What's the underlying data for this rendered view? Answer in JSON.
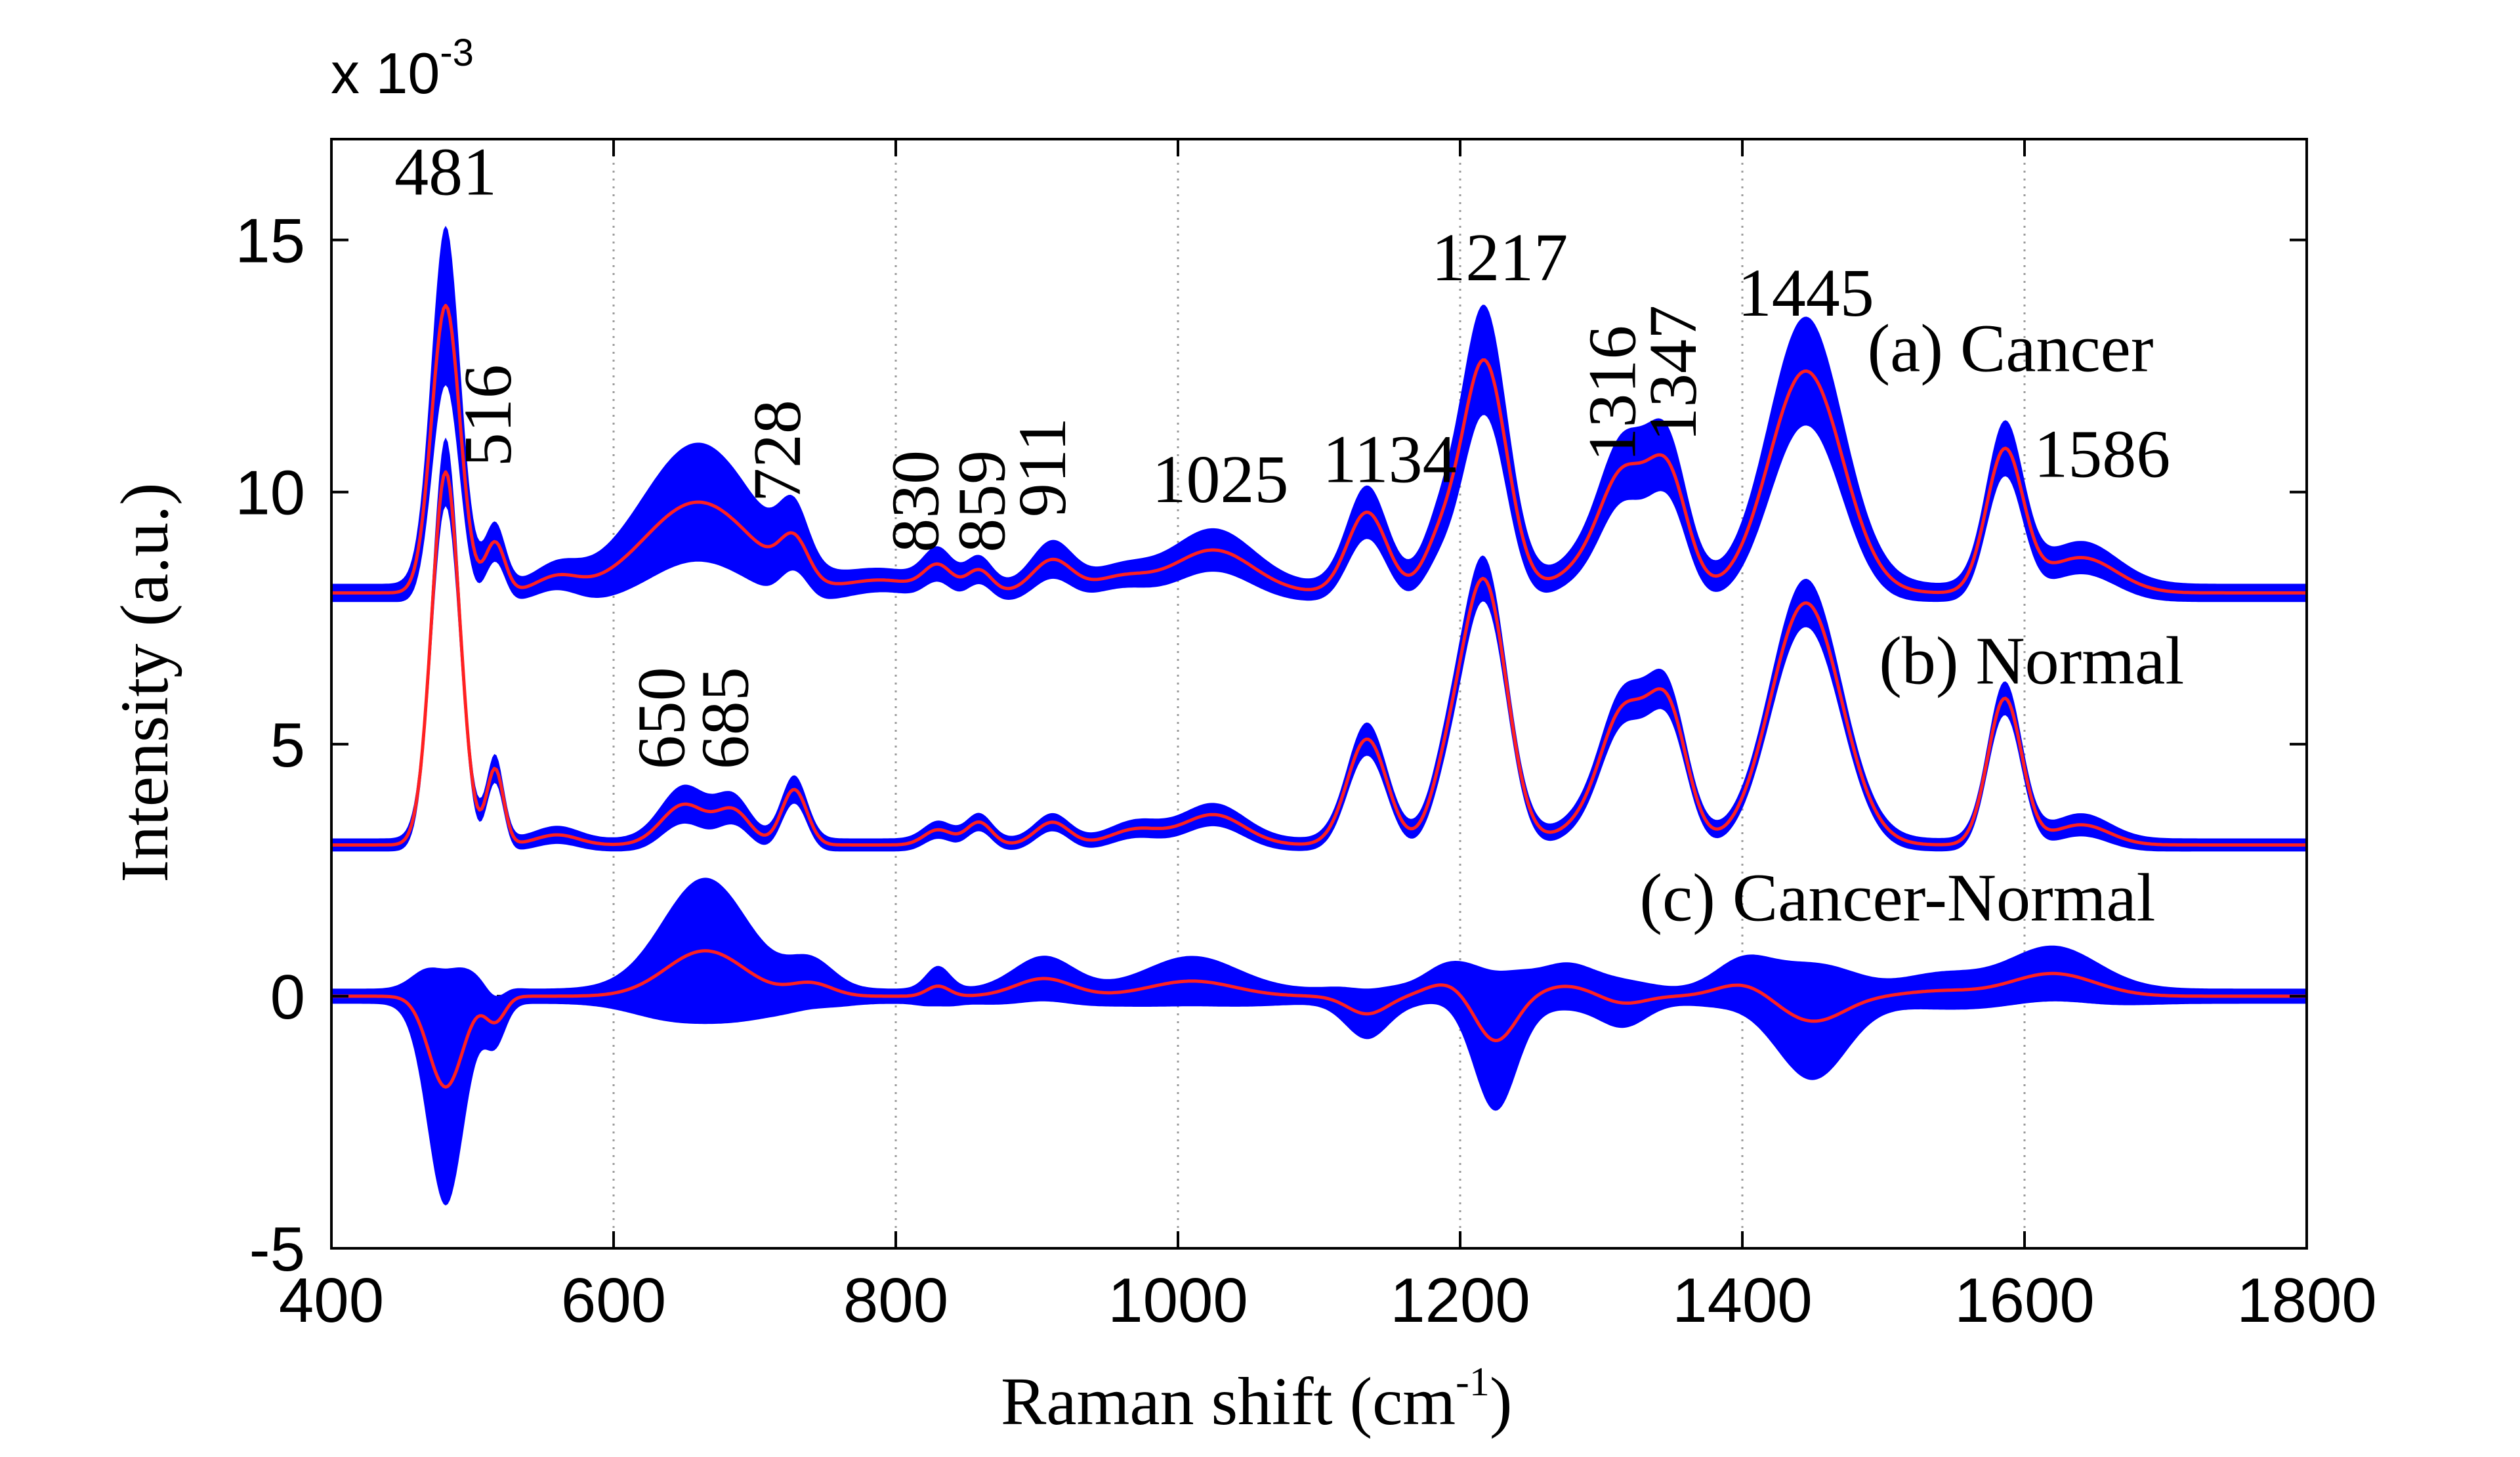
{
  "chart_data": {
    "type": "area",
    "multiplier": {
      "base": "x 10",
      "exponent": "-3"
    },
    "xlabel": {
      "text": "Raman shift (cm",
      "sup": "-1",
      "close": ")"
    },
    "ylabel": "Intensity (a.u.)",
    "xlim": [
      400,
      1800
    ],
    "ylim": [
      -5,
      17
    ],
    "xticks": [
      400,
      600,
      800,
      1000,
      1200,
      1400,
      1600,
      1800
    ],
    "yticks": [
      -5,
      0,
      5,
      10,
      15
    ],
    "xtick_labels": [
      "400",
      "600",
      "800",
      "1000",
      "1200",
      "1400",
      "1600",
      "1800"
    ],
    "ytick_labels": [
      "-5",
      "0",
      "5",
      "10",
      "15"
    ],
    "grid": "vertical dotted",
    "zero_line": {
      "y": 0,
      "style": "dashed"
    },
    "colors": {
      "band": "#0000FF",
      "mean": "#FF2020",
      "grid": "#9a9a9a",
      "axis": "#000000"
    },
    "series": [
      {
        "name": "(a) Cancer",
        "baseline": 8.0,
        "band_halfwidth": 0.18,
        "peaks": [
          {
            "x": 481,
            "h": 5.7,
            "w": 10,
            "bw": 1.4
          },
          {
            "x": 516,
            "h": 1.0,
            "w": 7,
            "bw": 0.2
          },
          {
            "x": 560,
            "h": 0.3,
            "w": 15,
            "bw": 0.05
          },
          {
            "x": 660,
            "h": 1.8,
            "w": 38,
            "bw": 1.0
          },
          {
            "x": 728,
            "h": 0.8,
            "w": 10,
            "bw": 0.25
          },
          {
            "x": 790,
            "h": 0.25,
            "w": 25,
            "bw": 0.05
          },
          {
            "x": 830,
            "h": 0.5,
            "w": 10,
            "bw": 0.15
          },
          {
            "x": 859,
            "h": 0.45,
            "w": 9,
            "bw": 0.1
          },
          {
            "x": 911,
            "h": 0.65,
            "w": 14,
            "bw": 0.2
          },
          {
            "x": 960,
            "h": 0.3,
            "w": 20,
            "bw": 0.05
          },
          {
            "x": 1025,
            "h": 0.85,
            "w": 28,
            "bw": 0.25
          },
          {
            "x": 1134,
            "h": 1.6,
            "w": 14,
            "bw": 0.35
          },
          {
            "x": 1185,
            "h": 0.8,
            "w": 12,
            "bw": 0.2
          },
          {
            "x": 1217,
            "h": 4.6,
            "w": 16,
            "bw": 0.9
          },
          {
            "x": 1290,
            "h": 0.5,
            "w": 20,
            "bw": 0.1
          },
          {
            "x": 1316,
            "h": 2.1,
            "w": 16,
            "bw": 0.4
          },
          {
            "x": 1347,
            "h": 2.3,
            "w": 14,
            "bw": 0.4
          },
          {
            "x": 1445,
            "h": 4.4,
            "w": 26,
            "bw": 0.9
          },
          {
            "x": 1586,
            "h": 2.8,
            "w": 13,
            "bw": 0.35
          },
          {
            "x": 1640,
            "h": 0.7,
            "w": 25,
            "bw": 0.15
          }
        ]
      },
      {
        "name": "(b) Normal",
        "baseline": 3.0,
        "band_halfwidth": 0.13,
        "peaks": [
          {
            "x": 481,
            "h": 7.4,
            "w": 10,
            "bw": 0.55
          },
          {
            "x": 516,
            "h": 1.5,
            "w": 6,
            "bw": 0.15
          },
          {
            "x": 560,
            "h": 0.2,
            "w": 15,
            "bw": 0.05
          },
          {
            "x": 650,
            "h": 0.8,
            "w": 16,
            "bw": 0.25
          },
          {
            "x": 685,
            "h": 0.65,
            "w": 12,
            "bw": 0.15
          },
          {
            "x": 728,
            "h": 1.1,
            "w": 9,
            "bw": 0.15
          },
          {
            "x": 830,
            "h": 0.3,
            "w": 10,
            "bw": 0.05
          },
          {
            "x": 859,
            "h": 0.45,
            "w": 9,
            "bw": 0.05
          },
          {
            "x": 911,
            "h": 0.45,
            "w": 12,
            "bw": 0.05
          },
          {
            "x": 970,
            "h": 0.3,
            "w": 18,
            "bw": 0.05
          },
          {
            "x": 1025,
            "h": 0.6,
            "w": 22,
            "bw": 0.1
          },
          {
            "x": 1134,
            "h": 2.1,
            "w": 14,
            "bw": 0.2
          },
          {
            "x": 1190,
            "h": 1.0,
            "w": 12,
            "bw": 0.15
          },
          {
            "x": 1217,
            "h": 5.2,
            "w": 16,
            "bw": 0.3
          },
          {
            "x": 1290,
            "h": 0.4,
            "w": 20,
            "bw": 0.05
          },
          {
            "x": 1316,
            "h": 2.4,
            "w": 16,
            "bw": 0.2
          },
          {
            "x": 1347,
            "h": 2.6,
            "w": 14,
            "bw": 0.2
          },
          {
            "x": 1445,
            "h": 4.8,
            "w": 25,
            "bw": 0.35
          },
          {
            "x": 1586,
            "h": 2.9,
            "w": 12,
            "bw": 0.2
          },
          {
            "x": 1640,
            "h": 0.4,
            "w": 20,
            "bw": 0.1
          }
        ]
      },
      {
        "name": "(c) Cancer-Normal",
        "baseline": 0.0,
        "band_halfwidth": 0.15,
        "peaks": [
          {
            "x": 481,
            "h": -1.8,
            "w": 12,
            "bw": 2.2
          },
          {
            "x": 516,
            "h": -0.5,
            "w": 7,
            "bw": 0.3
          },
          {
            "x": 665,
            "h": 0.9,
            "w": 28,
            "bw": 1.3
          },
          {
            "x": 740,
            "h": 0.25,
            "w": 15,
            "bw": 0.3
          },
          {
            "x": 830,
            "h": 0.2,
            "w": 8,
            "bw": 0.25
          },
          {
            "x": 905,
            "h": 0.35,
            "w": 20,
            "bw": 0.3
          },
          {
            "x": 1010,
            "h": 0.3,
            "w": 30,
            "bw": 0.35
          },
          {
            "x": 1134,
            "h": -0.35,
            "w": 14,
            "bw": 0.35
          },
          {
            "x": 1190,
            "h": 0.25,
            "w": 15,
            "bw": 0.2
          },
          {
            "x": 1225,
            "h": -0.9,
            "w": 14,
            "bw": 1.2
          },
          {
            "x": 1275,
            "h": 0.2,
            "w": 18,
            "bw": 0.3
          },
          {
            "x": 1316,
            "h": -0.15,
            "w": 15,
            "bw": 0.3
          },
          {
            "x": 1400,
            "h": 0.25,
            "w": 18,
            "bw": 0.3
          },
          {
            "x": 1450,
            "h": -0.5,
            "w": 22,
            "bw": 1.0
          },
          {
            "x": 1540,
            "h": 0.1,
            "w": 25,
            "bw": 0.2
          },
          {
            "x": 1620,
            "h": 0.45,
            "w": 30,
            "bw": 0.4
          }
        ]
      }
    ],
    "peak_labels": [
      {
        "text": "481",
        "x": 481,
        "y": 15.9,
        "rotate": false
      },
      {
        "text": "516",
        "x": 527,
        "y": 10.5,
        "rotate": true
      },
      {
        "text": "728",
        "x": 732,
        "y": 9.8,
        "rotate": true
      },
      {
        "text": "830",
        "x": 830,
        "y": 8.8,
        "rotate": true
      },
      {
        "text": "859",
        "x": 877,
        "y": 8.8,
        "rotate": true
      },
      {
        "text": "911",
        "x": 920,
        "y": 9.5,
        "rotate": true
      },
      {
        "text": "1025",
        "x": 1030,
        "y": 9.8,
        "rotate": false
      },
      {
        "text": "1134",
        "x": 1150,
        "y": 10.2,
        "rotate": false
      },
      {
        "text": "1217",
        "x": 1228,
        "y": 14.2,
        "rotate": false
      },
      {
        "text": "1316",
        "x": 1324,
        "y": 10.6,
        "rotate": true
      },
      {
        "text": "1347",
        "x": 1367,
        "y": 11.0,
        "rotate": true
      },
      {
        "text": "1445",
        "x": 1445,
        "y": 13.5,
        "rotate": false
      },
      {
        "text": "1586",
        "x": 1655,
        "y": 10.3,
        "rotate": false
      },
      {
        "text": "650",
        "x": 650,
        "y": 4.5,
        "rotate": true
      },
      {
        "text": "685",
        "x": 695,
        "y": 4.5,
        "rotate": true
      }
    ],
    "series_labels": [
      {
        "text": "(a) Cancer",
        "x": 1590,
        "y": 12.4
      },
      {
        "text": "(b) Normal",
        "x": 1605,
        "y": 6.2
      },
      {
        "text": "(c) Cancer-Normal",
        "x": 1510,
        "y": 1.5
      }
    ]
  }
}
